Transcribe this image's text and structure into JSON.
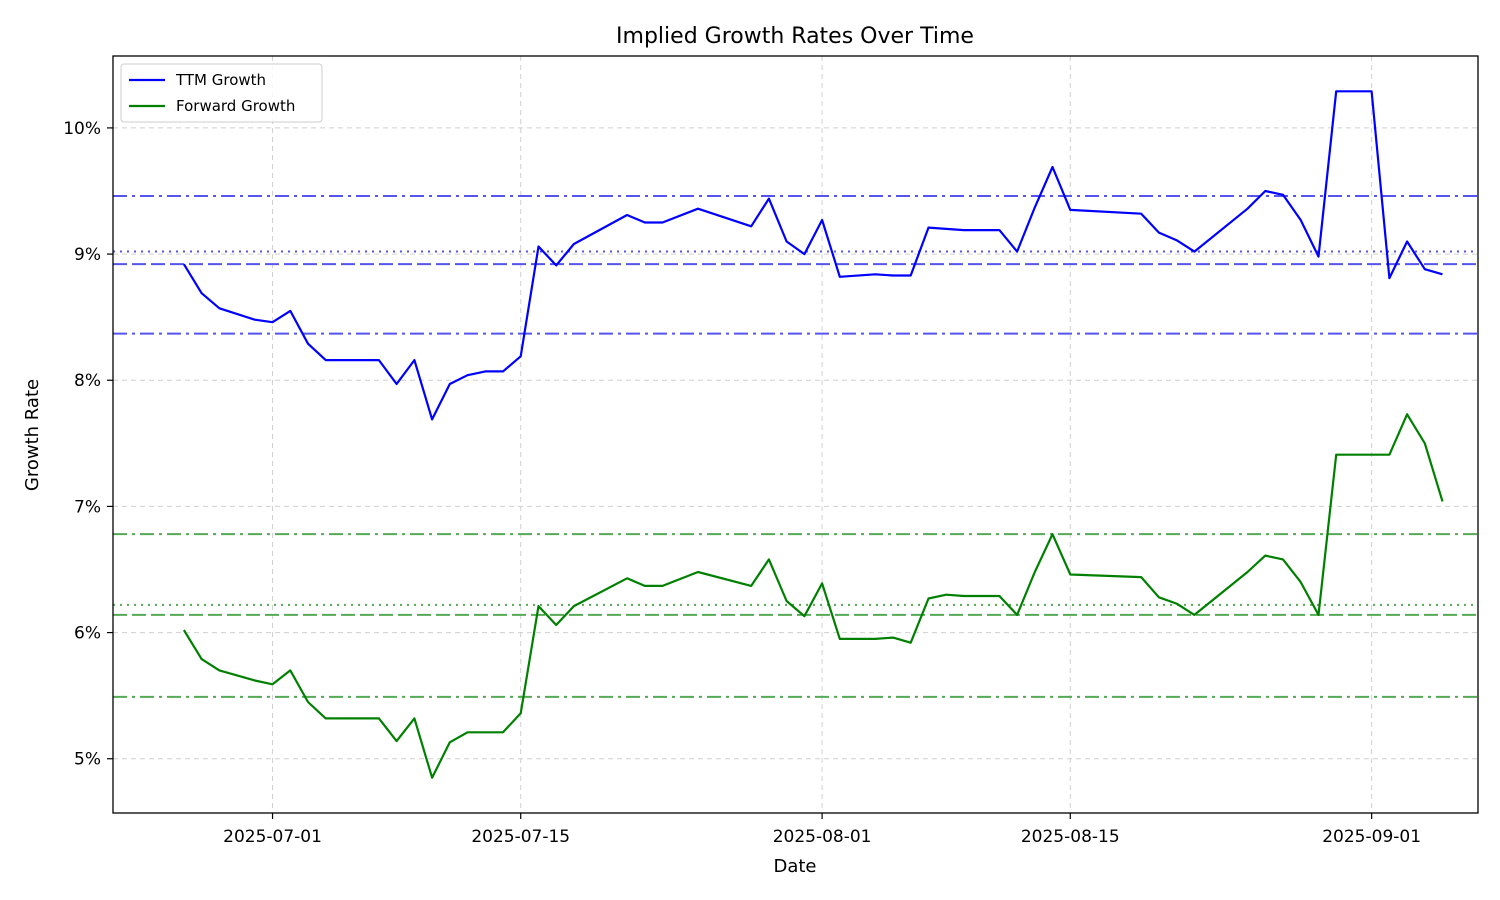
{
  "chart_data": {
    "type": "line",
    "title": "Implied Growth Rates Over Time",
    "xlabel": "Date",
    "ylabel": "Growth Rate",
    "xlim": [
      "2025-06-22",
      "2025-09-07"
    ],
    "ylim": [
      4.57,
      10.57
    ],
    "y_unit_suffix": "%",
    "x_ticks": [
      "2025-07-01",
      "2025-07-15",
      "2025-08-01",
      "2025-08-15",
      "2025-09-01"
    ],
    "y_ticks": [
      5,
      6,
      7,
      8,
      9,
      10
    ],
    "grid": true,
    "legend_position": "top-left",
    "series": [
      {
        "name": "TTM Growth",
        "color": "#0000ff",
        "points": [
          [
            "2025-06-26",
            8.92
          ],
          [
            "2025-06-27",
            8.69
          ],
          [
            "2025-06-28",
            8.57
          ],
          [
            "2025-06-30",
            8.48
          ],
          [
            "2025-07-01",
            8.46
          ],
          [
            "2025-07-02",
            8.55
          ],
          [
            "2025-07-03",
            8.29
          ],
          [
            "2025-07-04",
            8.16
          ],
          [
            "2025-07-07",
            8.16
          ],
          [
            "2025-07-08",
            7.97
          ],
          [
            "2025-07-09",
            8.16
          ],
          [
            "2025-07-10",
            7.69
          ],
          [
            "2025-07-11",
            7.97
          ],
          [
            "2025-07-12",
            8.04
          ],
          [
            "2025-07-13",
            8.07
          ],
          [
            "2025-07-14",
            8.07
          ],
          [
            "2025-07-15",
            8.19
          ],
          [
            "2025-07-16",
            9.06
          ],
          [
            "2025-07-17",
            8.91
          ],
          [
            "2025-07-18",
            9.08
          ],
          [
            "2025-07-21",
            9.31
          ],
          [
            "2025-07-22",
            9.25
          ],
          [
            "2025-07-23",
            9.25
          ],
          [
            "2025-07-25",
            9.36
          ],
          [
            "2025-07-28",
            9.22
          ],
          [
            "2025-07-29",
            9.44
          ],
          [
            "2025-07-30",
            9.1
          ],
          [
            "2025-07-31",
            9.0
          ],
          [
            "2025-08-01",
            9.27
          ],
          [
            "2025-08-02",
            8.82
          ],
          [
            "2025-08-04",
            8.84
          ],
          [
            "2025-08-05",
            8.83
          ],
          [
            "2025-08-06",
            8.83
          ],
          [
            "2025-08-07",
            9.21
          ],
          [
            "2025-08-09",
            9.19
          ],
          [
            "2025-08-11",
            9.19
          ],
          [
            "2025-08-12",
            9.02
          ],
          [
            "2025-08-13",
            9.37
          ],
          [
            "2025-08-14",
            9.69
          ],
          [
            "2025-08-15",
            9.35
          ],
          [
            "2025-08-19",
            9.32
          ],
          [
            "2025-08-20",
            9.17
          ],
          [
            "2025-08-21",
            9.11
          ],
          [
            "2025-08-22",
            9.02
          ],
          [
            "2025-08-25",
            9.36
          ],
          [
            "2025-08-26",
            9.5
          ],
          [
            "2025-08-27",
            9.47
          ],
          [
            "2025-08-28",
            9.27
          ],
          [
            "2025-08-29",
            8.98
          ],
          [
            "2025-08-30",
            10.29
          ],
          [
            "2025-09-01",
            10.29
          ],
          [
            "2025-09-02",
            8.81
          ],
          [
            "2025-09-03",
            9.1
          ],
          [
            "2025-09-04",
            8.88
          ],
          [
            "2025-09-05",
            8.84
          ]
        ]
      },
      {
        "name": "Forward Growth",
        "color": "#008000",
        "points": [
          [
            "2025-06-26",
            6.02
          ],
          [
            "2025-06-27",
            5.79
          ],
          [
            "2025-06-28",
            5.7
          ],
          [
            "2025-06-30",
            5.62
          ],
          [
            "2025-07-01",
            5.59
          ],
          [
            "2025-07-02",
            5.7
          ],
          [
            "2025-07-03",
            5.45
          ],
          [
            "2025-07-04",
            5.32
          ],
          [
            "2025-07-07",
            5.32
          ],
          [
            "2025-07-08",
            5.14
          ],
          [
            "2025-07-09",
            5.32
          ],
          [
            "2025-07-10",
            4.85
          ],
          [
            "2025-07-11",
            5.13
          ],
          [
            "2025-07-12",
            5.21
          ],
          [
            "2025-07-13",
            5.21
          ],
          [
            "2025-07-14",
            5.21
          ],
          [
            "2025-07-15",
            5.36
          ],
          [
            "2025-07-16",
            6.21
          ],
          [
            "2025-07-17",
            6.06
          ],
          [
            "2025-07-18",
            6.21
          ],
          [
            "2025-07-21",
            6.43
          ],
          [
            "2025-07-22",
            6.37
          ],
          [
            "2025-07-23",
            6.37
          ],
          [
            "2025-07-25",
            6.48
          ],
          [
            "2025-07-28",
            6.37
          ],
          [
            "2025-07-29",
            6.58
          ],
          [
            "2025-07-30",
            6.25
          ],
          [
            "2025-07-31",
            6.13
          ],
          [
            "2025-08-01",
            6.39
          ],
          [
            "2025-08-02",
            5.95
          ],
          [
            "2025-08-04",
            5.95
          ],
          [
            "2025-08-05",
            5.96
          ],
          [
            "2025-08-06",
            5.92
          ],
          [
            "2025-08-07",
            6.27
          ],
          [
            "2025-08-08",
            6.3
          ],
          [
            "2025-08-09",
            6.29
          ],
          [
            "2025-08-11",
            6.29
          ],
          [
            "2025-08-12",
            6.14
          ],
          [
            "2025-08-13",
            6.48
          ],
          [
            "2025-08-14",
            6.78
          ],
          [
            "2025-08-15",
            6.46
          ],
          [
            "2025-08-19",
            6.44
          ],
          [
            "2025-08-20",
            6.28
          ],
          [
            "2025-08-21",
            6.23
          ],
          [
            "2025-08-22",
            6.14
          ],
          [
            "2025-08-25",
            6.48
          ],
          [
            "2025-08-26",
            6.61
          ],
          [
            "2025-08-27",
            6.58
          ],
          [
            "2025-08-28",
            6.4
          ],
          [
            "2025-08-29",
            6.14
          ],
          [
            "2025-08-30",
            7.41
          ],
          [
            "2025-09-01",
            7.41
          ],
          [
            "2025-09-02",
            7.41
          ],
          [
            "2025-09-03",
            7.73
          ],
          [
            "2025-09-04",
            7.5
          ],
          [
            "2025-09-05",
            7.04
          ]
        ]
      }
    ],
    "reference_lines": [
      {
        "series": "TTM Growth",
        "y": 9.46,
        "style": "dashdot",
        "color": "#5555ee"
      },
      {
        "series": "TTM Growth",
        "y": 9.02,
        "style": "dotted",
        "color": "#5555ee"
      },
      {
        "series": "TTM Growth",
        "y": 8.92,
        "style": "dashed",
        "color": "#5555ee"
      },
      {
        "series": "TTM Growth",
        "y": 8.37,
        "style": "dashdot",
        "color": "#5555ee"
      },
      {
        "series": "Forward Growth",
        "y": 6.78,
        "style": "dashdot",
        "color": "#55aa55"
      },
      {
        "series": "Forward Growth",
        "y": 6.22,
        "style": "dotted",
        "color": "#55aa55"
      },
      {
        "series": "Forward Growth",
        "y": 6.14,
        "style": "dashed",
        "color": "#55aa55"
      },
      {
        "series": "Forward Growth",
        "y": 5.49,
        "style": "dashdot",
        "color": "#55aa55"
      }
    ]
  }
}
